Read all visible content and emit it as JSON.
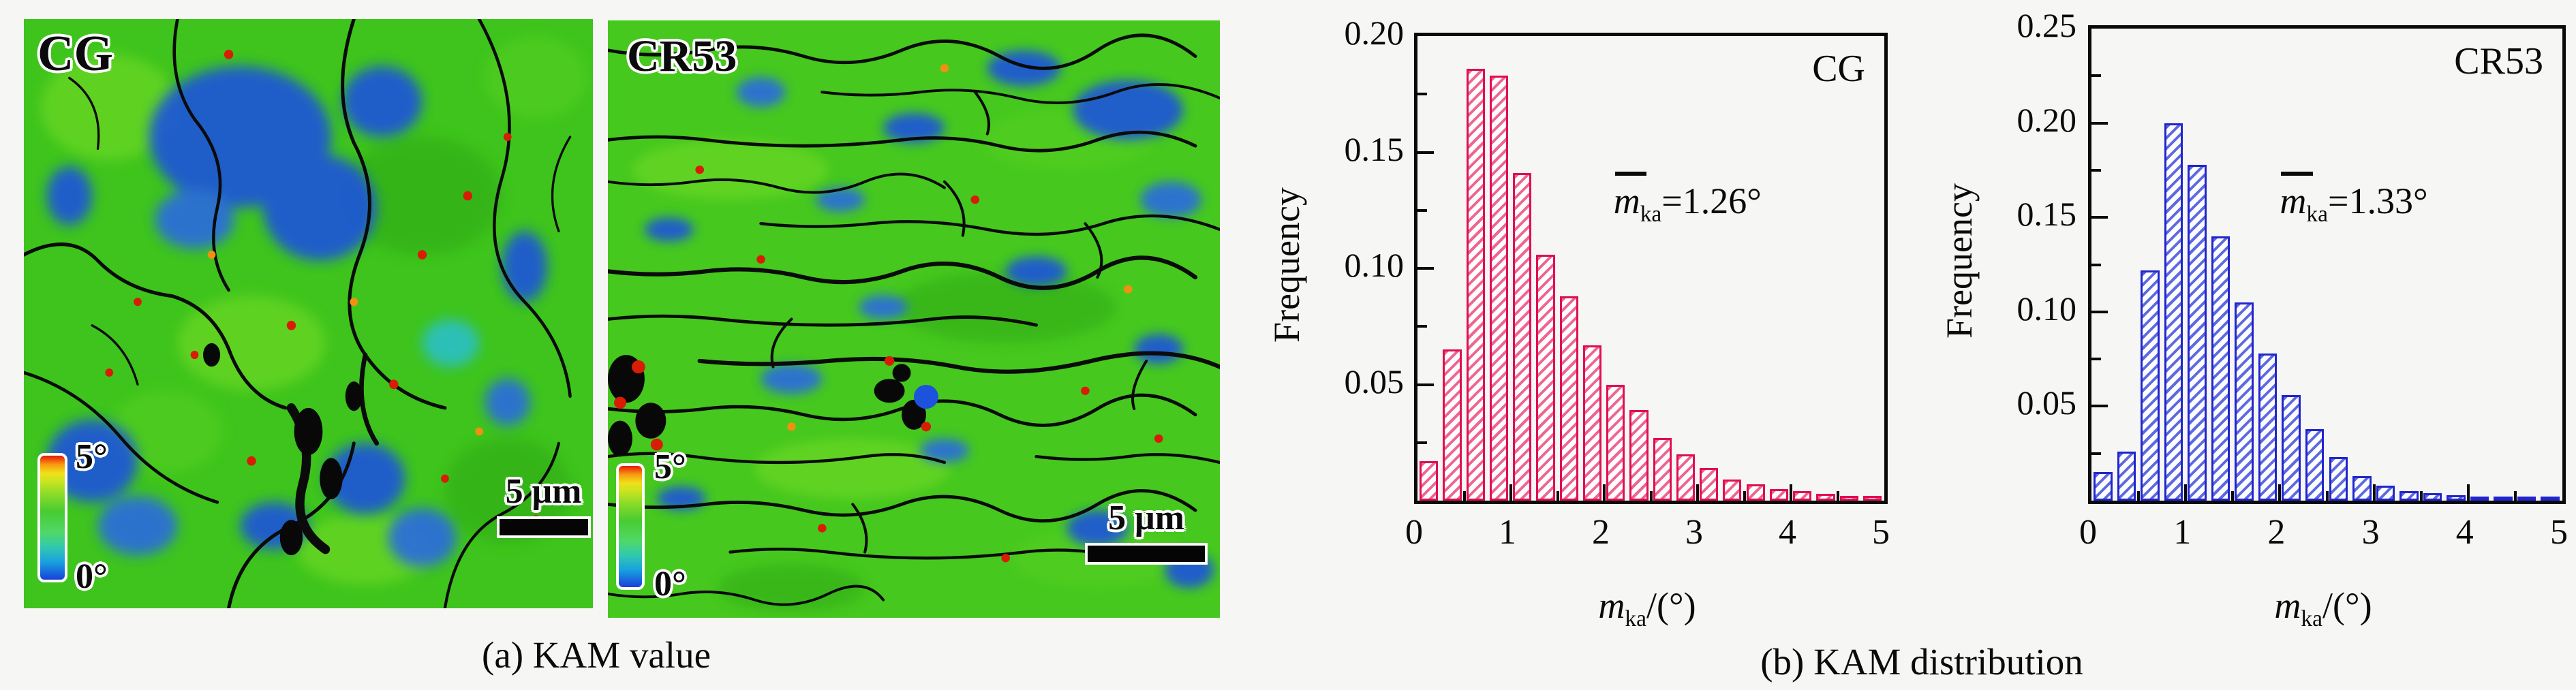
{
  "panel_a": {
    "caption": "(a) KAM value",
    "maps": [
      {
        "label": "CG",
        "colorbar_top": "5°",
        "colorbar_bottom": "0°",
        "scalebar": "5 μm"
      },
      {
        "label": "CR53",
        "colorbar_top": "5°",
        "colorbar_bottom": "0°",
        "scalebar": "5 μm"
      }
    ]
  },
  "panel_b": {
    "caption": "(b) KAM distribution"
  },
  "chart_data": [
    {
      "type": "bar",
      "panel_label": "CG",
      "ylabel": "Frequency",
      "xlabel_var": "m",
      "xlabel_sub": "ka",
      "xlabel_rest": "/(°)",
      "annotation_var": "m",
      "annotation_sub": "ka",
      "annotation_rest": "=1.26°",
      "xlim": [
        0,
        5
      ],
      "ylim": [
        0,
        0.2
      ],
      "xticks": [
        "0",
        "1",
        "2",
        "3",
        "4",
        "5"
      ],
      "yticks": [
        "0.05",
        "0.10",
        "0.15",
        "0.20"
      ],
      "bin_start": 0,
      "bin_width": 0.25,
      "values": [
        0.017,
        0.065,
        0.186,
        0.183,
        0.141,
        0.106,
        0.088,
        0.067,
        0.05,
        0.039,
        0.027,
        0.02,
        0.014,
        0.009,
        0.007,
        0.005,
        0.004,
        0.003,
        0.002,
        0.002
      ],
      "bar_edge_color": "#e00e50",
      "hatch_color": "#ee6593",
      "legend_position": "none",
      "grid": false
    },
    {
      "type": "bar",
      "panel_label": "CR53",
      "ylabel": "Frequency",
      "xlabel_var": "m",
      "xlabel_sub": "ka",
      "xlabel_rest": "/(°)",
      "annotation_var": "m",
      "annotation_sub": "ka",
      "annotation_rest": "=1.33°",
      "xlim": [
        0,
        5
      ],
      "ylim": [
        0,
        0.25
      ],
      "xticks": [
        "0",
        "1",
        "2",
        "3",
        "4",
        "5"
      ],
      "yticks": [
        "0.05",
        "0.10",
        "0.15",
        "0.20",
        "0.25"
      ],
      "bin_start": 0,
      "bin_width": 0.25,
      "values": [
        0.015,
        0.026,
        0.122,
        0.2,
        0.178,
        0.14,
        0.105,
        0.078,
        0.056,
        0.038,
        0.023,
        0.013,
        0.008,
        0.005,
        0.004,
        0.003,
        0.002,
        0.002,
        0.001,
        0.001
      ],
      "bar_edge_color": "#2025cf",
      "hatch_color": "#5d6ae0",
      "legend_position": "none",
      "grid": false
    }
  ],
  "colors": {
    "map_base_green": "#3ec41c",
    "map_blue_patch": "#1c52dc",
    "grain_boundary": "#0b0b0b",
    "hot_spot_red": "#d81c06",
    "kam_scale": [
      "#1840d8",
      "#18a0e0",
      "#30c8b0",
      "#50d868",
      "#48cc30",
      "#90dc28",
      "#c8e420",
      "#f0e018",
      "#f89810",
      "#e81808"
    ],
    "cg_bar": "#e00e50",
    "cr53_bar": "#2025cf"
  }
}
